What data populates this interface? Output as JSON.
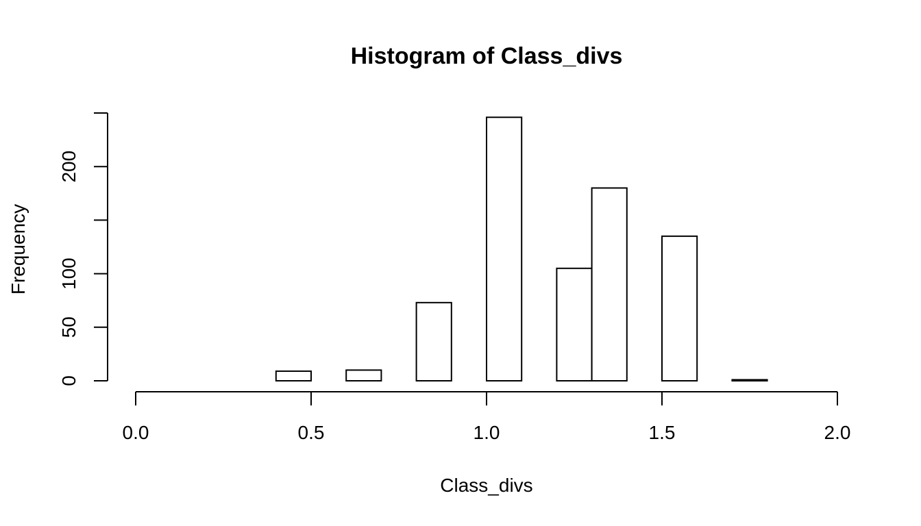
{
  "chart_data": {
    "type": "bar",
    "title": "Histogram of Class_divs",
    "xlabel": "Class_divs",
    "ylabel": "Frequency",
    "xlim": [
      0,
      2
    ],
    "ylim": [
      0,
      250
    ],
    "x_ticks": [
      0,
      0.5,
      1,
      1.5,
      2
    ],
    "x_tick_labels": [
      "0.0",
      "0.5",
      "1.0",
      "1.5",
      "2.0"
    ],
    "y_ticks": [
      0,
      50,
      100,
      150,
      200,
      250
    ],
    "y_tick_labels": [
      "0",
      "50",
      "100",
      "",
      "200",
      ""
    ],
    "bins": [
      {
        "start": 0.4,
        "end": 0.5,
        "count": 9
      },
      {
        "start": 0.5,
        "end": 0.6,
        "count": 0
      },
      {
        "start": 0.6,
        "end": 0.7,
        "count": 10
      },
      {
        "start": 0.7,
        "end": 0.8,
        "count": 0
      },
      {
        "start": 0.8,
        "end": 0.9,
        "count": 73
      },
      {
        "start": 0.9,
        "end": 1.0,
        "count": 0
      },
      {
        "start": 1.0,
        "end": 1.1,
        "count": 246
      },
      {
        "start": 1.1,
        "end": 1.2,
        "count": 0
      },
      {
        "start": 1.2,
        "end": 1.3,
        "count": 105
      },
      {
        "start": 1.3,
        "end": 1.4,
        "count": 180
      },
      {
        "start": 1.4,
        "end": 1.5,
        "count": 0
      },
      {
        "start": 1.5,
        "end": 1.6,
        "count": 135
      },
      {
        "start": 1.6,
        "end": 1.7,
        "count": 0
      },
      {
        "start": 1.7,
        "end": 1.8,
        "count": 1
      }
    ]
  }
}
